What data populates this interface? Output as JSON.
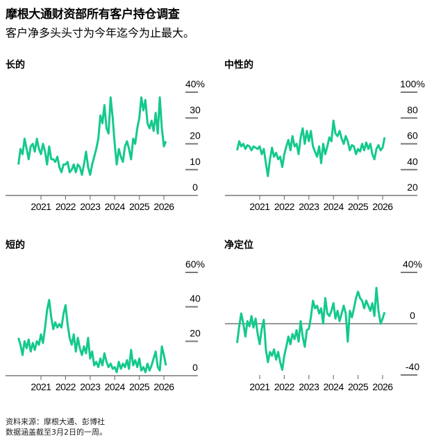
{
  "header": {
    "title": "摩根大通财资部所有客户持仓调查",
    "subtitle": "客户净多头头寸为今年迄今为止最大。"
  },
  "footer": {
    "source": "资料来源：摩根大通、彭博社",
    "note": "数据涵盖截至3月2日的一周。"
  },
  "colors": {
    "line": "#14c98b",
    "grid": "#777777",
    "axis": "#777777",
    "text": "#000000"
  },
  "chart_data": [
    {
      "type": "line",
      "title": "长的",
      "ylim": [
        0,
        40
      ],
      "y_ticks": [
        {
          "value": 40,
          "label": "40%"
        },
        {
          "value": 30,
          "label": "30"
        },
        {
          "value": 20,
          "label": "20"
        },
        {
          "value": 10,
          "label": "10"
        },
        {
          "value": 0,
          "label": "0"
        }
      ],
      "x_ticks": [
        "2021",
        "2022",
        "2023",
        "2024",
        "2025",
        "2026"
      ],
      "x_start": "2020-02",
      "values": [
        12,
        18,
        16,
        22,
        18,
        14,
        19,
        20,
        17,
        22,
        18,
        16,
        20,
        17,
        12,
        19,
        14,
        14,
        13,
        15,
        11,
        9,
        12,
        12,
        13,
        9,
        10,
        12,
        9,
        12,
        11,
        8,
        12,
        17,
        11,
        8,
        12,
        15,
        18,
        22,
        31,
        28,
        35,
        26,
        24,
        38,
        30,
        20,
        12,
        18,
        15,
        13,
        19,
        21,
        18,
        14,
        22,
        20,
        26,
        30,
        38,
        33,
        37,
        28,
        26,
        29,
        25,
        32,
        24,
        38,
        26,
        19,
        21
      ]
    },
    {
      "type": "line",
      "title": "中性的",
      "ylim": [
        20,
        100
      ],
      "y_ticks": [
        {
          "value": 100,
          "label": "100%"
        },
        {
          "value": 80,
          "label": "80"
        },
        {
          "value": 60,
          "label": "60"
        },
        {
          "value": 40,
          "label": "40"
        },
        {
          "value": 20,
          "label": "20"
        }
      ],
      "x_ticks": [
        "2021",
        "2022",
        "2023",
        "2024",
        "2025",
        "2026"
      ],
      "x_start": "2020-02",
      "values": [
        55,
        62,
        58,
        60,
        56,
        59,
        58,
        55,
        58,
        57,
        56,
        58,
        52,
        56,
        45,
        35,
        48,
        57,
        50,
        53,
        48,
        50,
        42,
        52,
        58,
        63,
        55,
        66,
        58,
        60,
        52,
        65,
        72,
        60,
        70,
        62,
        70,
        58,
        54,
        50,
        58,
        45,
        60,
        52,
        58,
        65,
        62,
        78,
        68,
        66,
        70,
        64,
        60,
        66,
        62,
        55,
        59,
        58,
        52,
        56,
        54,
        60,
        55,
        61,
        56,
        60,
        52,
        48,
        56,
        59,
        55,
        57,
        65
      ]
    },
    {
      "type": "line",
      "title": "短的",
      "ylim": [
        0,
        60
      ],
      "y_ticks": [
        {
          "value": 60,
          "label": "60%"
        },
        {
          "value": 40,
          "label": "40"
        },
        {
          "value": 20,
          "label": "20"
        },
        {
          "value": 0,
          "label": "0"
        }
      ],
      "x_ticks": [
        "2021",
        "2022",
        "2023",
        "2024",
        "2025",
        "2026"
      ],
      "x_start": "2020-02",
      "values": [
        22,
        18,
        12,
        20,
        16,
        21,
        14,
        19,
        15,
        20,
        18,
        24,
        19,
        28,
        38,
        44,
        34,
        27,
        31,
        28,
        30,
        28,
        36,
        41,
        30,
        22,
        18,
        24,
        14,
        22,
        16,
        12,
        17,
        13,
        22,
        10,
        14,
        6,
        8,
        5,
        10,
        6,
        13,
        8,
        5,
        7,
        4,
        5,
        2,
        8,
        4,
        7,
        5,
        9,
        4,
        15,
        6,
        9,
        5,
        10,
        3,
        5,
        2,
        7,
        3,
        6,
        10,
        14,
        5,
        3,
        17,
        12,
        6
      ]
    },
    {
      "type": "line",
      "title": "净定位",
      "ylim": [
        -40,
        40
      ],
      "y_ticks": [
        {
          "value": 40,
          "label": "40%"
        },
        {
          "value": 0,
          "label": "0"
        },
        {
          "value": -40,
          "label": "-40"
        }
      ],
      "x_ticks": [
        "2021",
        "2022",
        "2023",
        "2024",
        "2025",
        "2026"
      ],
      "x_start": "2020-02",
      "values": [
        -15,
        -2,
        8,
        0,
        -10,
        2,
        -2,
        6,
        -3,
        4,
        -8,
        -16,
        -4,
        3,
        -20,
        -30,
        -22,
        -25,
        -20,
        -28,
        -22,
        -30,
        -36,
        -25,
        -18,
        -10,
        -16,
        -8,
        -12,
        -5,
        -14,
        2,
        -10,
        -18,
        -5,
        -4,
        5,
        18,
        12,
        14,
        8,
        12,
        0,
        20,
        8,
        6,
        10,
        16,
        4,
        10,
        2,
        8,
        14,
        8,
        -14,
        10,
        5,
        12,
        20,
        25,
        20,
        18,
        12,
        18,
        14,
        10,
        16,
        6,
        28,
        10,
        0,
        4,
        9
      ]
    }
  ]
}
